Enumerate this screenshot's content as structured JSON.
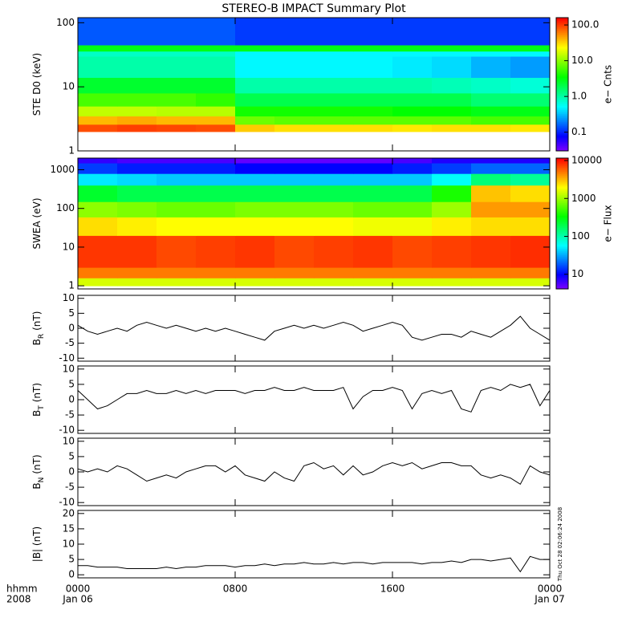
{
  "timestamp": "Thu Oct 28 02:06:24 2008",
  "chart_data": [
    {
      "type": "heatmap",
      "title": "STEREO-B IMPACT Summary Plot",
      "ylabel": "STE D0 (keV)",
      "ylog": true,
      "xlim": [
        0,
        24
      ],
      "xticks": [
        0,
        8,
        16,
        24
      ],
      "ylim": [
        1,
        120
      ],
      "yticks": [
        1,
        10,
        100
      ],
      "xbins": [
        0,
        2,
        4,
        6,
        8,
        10,
        12,
        14,
        16,
        18,
        20,
        22,
        24
      ],
      "ybins": [
        2,
        2.6,
        3.5,
        5,
        8,
        14,
        30,
        36,
        45,
        120
      ],
      "values": [
        [
          90,
          100,
          95,
          90,
          35,
          30,
          30,
          30,
          28,
          30,
          30,
          28
        ],
        [
          40,
          45,
          40,
          40,
          8,
          7,
          7,
          7,
          7,
          7,
          6,
          6
        ],
        [
          15,
          15,
          14,
          14,
          4,
          4,
          4,
          4,
          3.5,
          3.5,
          3,
          3
        ],
        [
          6,
          6,
          6,
          5,
          2,
          2,
          2,
          2,
          2,
          2,
          1.5,
          1.5
        ],
        [
          2.5,
          2.5,
          2.5,
          2.5,
          1,
          1,
          1,
          1,
          1,
          0.9,
          0.8,
          0.7
        ],
        [
          1,
          1,
          1,
          1,
          0.5,
          0.5,
          0.5,
          0.5,
          0.45,
          0.4,
          0.3,
          0.25
        ],
        [
          0.8,
          0.8,
          0.8,
          0.8,
          0.5,
          0.5,
          0.5,
          0.5,
          0.5,
          0.5,
          0.5,
          0.5
        ],
        [
          3,
          3,
          3,
          3,
          3,
          3,
          3,
          3,
          3,
          3,
          3,
          3
        ],
        [
          0.15,
          0.15,
          0.15,
          0.15,
          0.12,
          0.12,
          0.12,
          0.12,
          0.12,
          0.12,
          0.12,
          0.12
        ]
      ],
      "colormap": "rainbow",
      "zlog": true,
      "zlim": [
        0.03,
        160
      ],
      "zticks": [
        {
          "value": 100,
          "label": "100.0"
        },
        {
          "value": 10,
          "label": "10.0"
        },
        {
          "value": 1,
          "label": "1.0"
        },
        0.1
      ],
      "zlabel": "e− Cnts"
    },
    {
      "type": "heatmap",
      "ylabel": "SWEA (eV)",
      "ylog": true,
      "xlim": [
        0,
        24
      ],
      "xticks": [
        0,
        8,
        16,
        24
      ],
      "ylim": [
        0.83,
        2000
      ],
      "yticks": [
        1,
        10,
        100,
        1000
      ],
      "xbins": [
        0,
        2,
        4,
        6,
        8,
        10,
        12,
        14,
        16,
        18,
        20,
        22,
        24
      ],
      "ybins": [
        1,
        1.6,
        3,
        20,
        60,
        150,
        400,
        800,
        1500,
        2000
      ],
      "values": [
        [
          1500,
          1500,
          1500,
          1500,
          1500,
          1500,
          1500,
          1500,
          1500,
          1500,
          1500,
          1500
        ],
        [
          5000,
          5000,
          5000,
          5000,
          5000,
          5000,
          5000,
          5000,
          5000,
          5000,
          5000,
          5000
        ],
        [
          8000,
          8000,
          7000,
          7500,
          8000,
          7000,
          7500,
          8000,
          7000,
          7500,
          8000,
          8500
        ],
        [
          2500,
          2200,
          2000,
          2000,
          2000,
          2000,
          2000,
          1800,
          1800,
          2200,
          2500,
          2500
        ],
        [
          900,
          800,
          700,
          700,
          800,
          800,
          800,
          700,
          700,
          1000,
          4000,
          4000
        ],
        [
          250,
          200,
          200,
          200,
          200,
          200,
          200,
          200,
          200,
          400,
          3000,
          2500
        ],
        [
          50,
          45,
          40,
          40,
          40,
          40,
          40,
          40,
          40,
          60,
          150,
          120
        ],
        [
          15,
          12,
          12,
          12,
          10,
          10,
          10,
          10,
          12,
          15,
          20,
          20
        ],
        [
          7,
          6,
          6,
          6,
          5,
          5,
          5,
          5,
          6,
          8,
          8,
          8
        ]
      ],
      "colormap": "rainbow",
      "zlog": true,
      "zlim": [
        4.1,
        11600
      ],
      "zticks": [
        10000,
        1000,
        100,
        10
      ],
      "zlabel": "e− Flux"
    },
    {
      "type": "line",
      "ylabel": "B",
      "ylabel_sub": "R",
      "ylabel_unit": "(nT)",
      "color": "#000000",
      "xlim": [
        0,
        24
      ],
      "xticks": [
        0,
        8,
        16,
        24
      ],
      "ylim": [
        -11,
        11
      ],
      "yticks": [
        10,
        5,
        0,
        -5,
        -10
      ],
      "x": [
        0,
        0.5,
        1,
        1.5,
        2,
        2.5,
        3,
        3.5,
        4,
        4.5,
        5,
        5.5,
        6,
        6.5,
        7,
        7.5,
        8,
        8.5,
        9,
        9.5,
        10,
        10.5,
        11,
        11.5,
        12,
        12.5,
        13,
        13.5,
        14,
        14.5,
        15,
        15.5,
        16,
        16.5,
        17,
        17.5,
        18,
        18.5,
        19,
        19.5,
        20,
        20.5,
        21,
        21.5,
        22,
        22.5,
        23,
        23.5,
        24
      ],
      "values": [
        1,
        -1,
        -2,
        -1,
        0,
        -1,
        1,
        2,
        1,
        0,
        1,
        0,
        -1,
        0,
        -1,
        0,
        -1,
        -2,
        -3,
        -4,
        -1,
        0,
        1,
        0,
        1,
        0,
        1,
        2,
        1,
        -1,
        0,
        1,
        2,
        1,
        -3,
        -4,
        -3,
        -2,
        -2,
        -3,
        -1,
        -2,
        -3,
        -1,
        1,
        4,
        0,
        -2,
        -4
      ]
    },
    {
      "type": "line",
      "ylabel": "B",
      "ylabel_sub": "T",
      "ylabel_unit": "(nT)",
      "color": "#000000",
      "xlim": [
        0,
        24
      ],
      "xticks": [
        0,
        8,
        16,
        24
      ],
      "ylim": [
        -11,
        11
      ],
      "yticks": [
        10,
        5,
        0,
        -5,
        -10
      ],
      "x": [
        0,
        0.5,
        1,
        1.5,
        2,
        2.5,
        3,
        3.5,
        4,
        4.5,
        5,
        5.5,
        6,
        6.5,
        7,
        7.5,
        8,
        8.5,
        9,
        9.5,
        10,
        10.5,
        11,
        11.5,
        12,
        12.5,
        13,
        13.5,
        14,
        14.5,
        15,
        15.5,
        16,
        16.5,
        17,
        17.5,
        18,
        18.5,
        19,
        19.5,
        20,
        20.5,
        21,
        21.5,
        22,
        22.5,
        23,
        23.5,
        24
      ],
      "values": [
        3,
        0,
        -3,
        -2,
        0,
        2,
        2,
        3,
        2,
        2,
        3,
        2,
        3,
        2,
        3,
        3,
        3,
        2,
        3,
        3,
        4,
        3,
        3,
        4,
        3,
        3,
        3,
        4,
        -3,
        1,
        3,
        3,
        4,
        3,
        -3,
        2,
        3,
        2,
        3,
        -3,
        -4,
        3,
        4,
        3,
        5,
        4,
        5,
        -2,
        3
      ]
    },
    {
      "type": "line",
      "ylabel": "B",
      "ylabel_sub": "N",
      "ylabel_unit": "(nT)",
      "color": "#000000",
      "xlim": [
        0,
        24
      ],
      "xticks": [
        0,
        8,
        16,
        24
      ],
      "ylim": [
        -11,
        11
      ],
      "yticks": [
        10,
        5,
        0,
        -5,
        -10
      ],
      "x": [
        0,
        0.5,
        1,
        1.5,
        2,
        2.5,
        3,
        3.5,
        4,
        4.5,
        5,
        5.5,
        6,
        6.5,
        7,
        7.5,
        8,
        8.5,
        9,
        9.5,
        10,
        10.5,
        11,
        11.5,
        12,
        12.5,
        13,
        13.5,
        14,
        14.5,
        15,
        15.5,
        16,
        16.5,
        17,
        17.5,
        18,
        18.5,
        19,
        19.5,
        20,
        20.5,
        21,
        21.5,
        22,
        22.5,
        23,
        23.5,
        24
      ],
      "values": [
        1,
        0,
        1,
        0,
        2,
        1,
        -1,
        -3,
        -2,
        -1,
        -2,
        0,
        1,
        2,
        2,
        0,
        2,
        -1,
        -2,
        -3,
        0,
        -2,
        -3,
        2,
        3,
        1,
        2,
        -1,
        2,
        -1,
        0,
        2,
        3,
        2,
        3,
        1,
        2,
        3,
        3,
        2,
        2,
        -1,
        -2,
        -1,
        -2,
        -4,
        2,
        0,
        -1
      ]
    },
    {
      "type": "line",
      "ylabel": "|B| (nT)",
      "color": "#000000",
      "xlim": [
        0,
        24
      ],
      "ylim": [
        -1,
        21
      ],
      "yticks": [
        20,
        15,
        10,
        5,
        0
      ],
      "xticks": [
        {
          "value": 0,
          "label": "0000"
        },
        {
          "value": 8,
          "label": "0800"
        },
        {
          "value": 16,
          "label": "1600"
        },
        {
          "value": 24,
          "label": "0000"
        }
      ],
      "xtick_dates": [
        "Jan 06",
        null,
        null,
        "Jan 07"
      ],
      "xlabel": "hhmm",
      "xlabel2": "2008",
      "x": [
        0,
        0.5,
        1,
        1.5,
        2,
        2.5,
        3,
        3.5,
        4,
        4.5,
        5,
        5.5,
        6,
        6.5,
        7,
        7.5,
        8,
        8.5,
        9,
        9.5,
        10,
        10.5,
        11,
        11.5,
        12,
        12.5,
        13,
        13.5,
        14,
        14.5,
        15,
        15.5,
        16,
        16.5,
        17,
        17.5,
        18,
        18.5,
        19,
        19.5,
        20,
        20.5,
        21,
        21.5,
        22,
        22.5,
        23,
        23.5,
        24
      ],
      "values": [
        3,
        3,
        2.5,
        2.5,
        2.5,
        2,
        2,
        2,
        2,
        2.5,
        2,
        2.5,
        2.5,
        3,
        3,
        3,
        2.5,
        3,
        3,
        3.5,
        3,
        3.5,
        3.5,
        4,
        3.5,
        3.5,
        4,
        3.5,
        4,
        4,
        3.5,
        4,
        4,
        4,
        4,
        3.5,
        4,
        4,
        4.5,
        4,
        5,
        5,
        4.5,
        5,
        5.5,
        1,
        6,
        5,
        5
      ]
    }
  ]
}
